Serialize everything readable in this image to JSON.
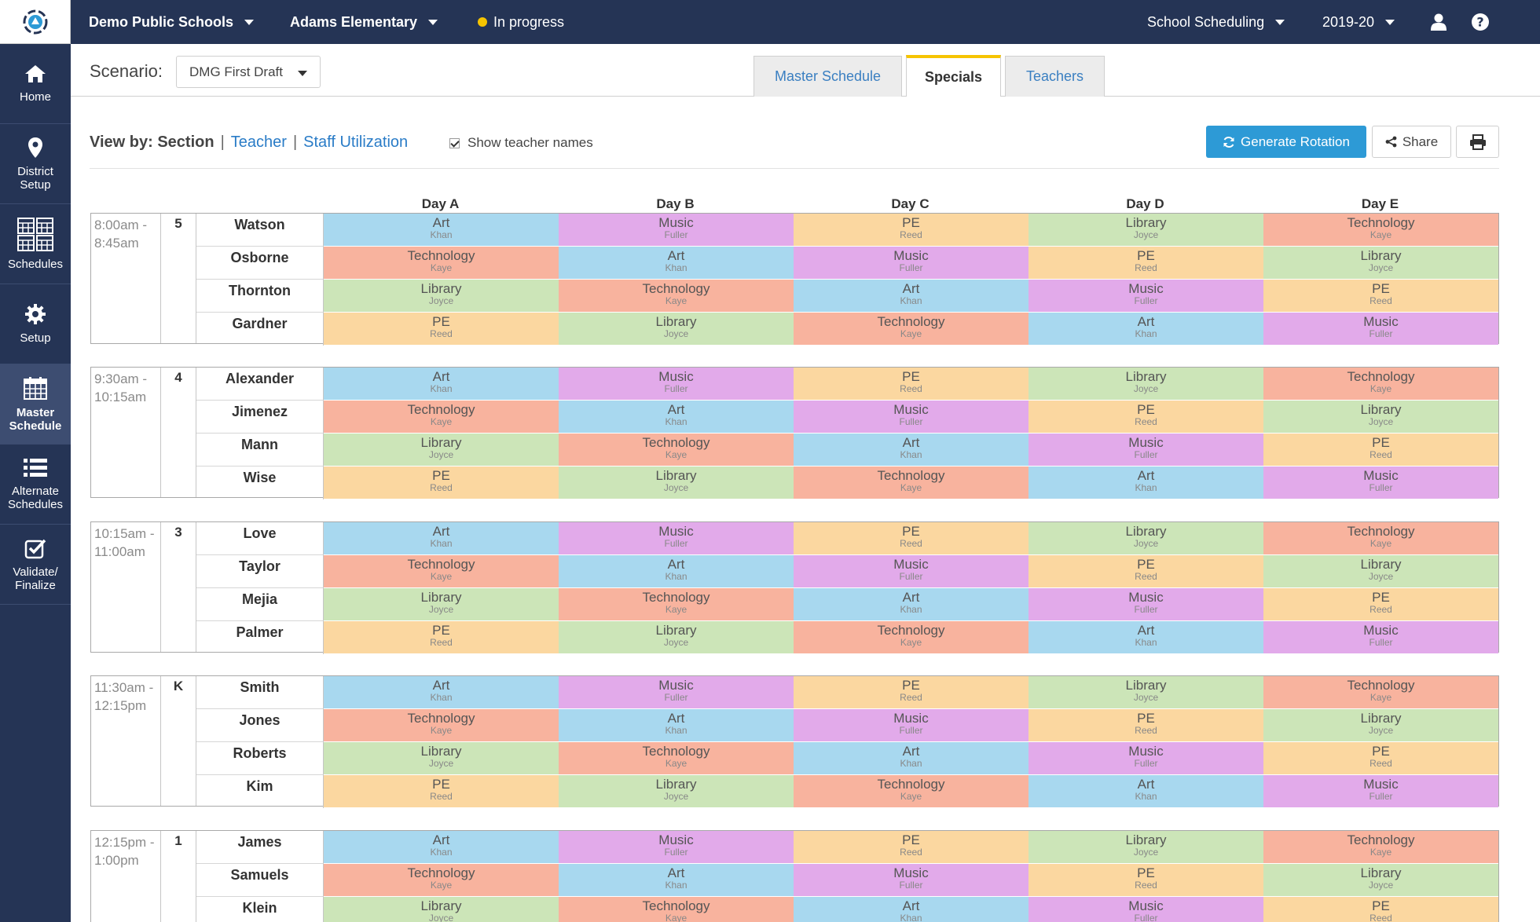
{
  "topbar": {
    "district": "Demo Public Schools",
    "school": "Adams Elementary",
    "status": "In progress",
    "app": "School Scheduling",
    "year": "2019-20"
  },
  "sidebar": {
    "items": [
      {
        "label": "Home",
        "icon": "home-icon"
      },
      {
        "label": "District\nSetup",
        "icon": "map-pin-icon"
      },
      {
        "label": "Schedules",
        "icon": "calendar-grid-icon"
      },
      {
        "label": "Setup",
        "icon": "gear-icon"
      },
      {
        "label": "Master\nSchedule",
        "icon": "calendar-icon",
        "active": true
      },
      {
        "label": "Alternate\nSchedules",
        "icon": "list-icon"
      },
      {
        "label": "Validate/\nFinalize",
        "icon": "checkbox-icon"
      }
    ]
  },
  "scenario": {
    "label": "Scenario:",
    "value": "DMG First Draft"
  },
  "tabs": [
    {
      "label": "Master Schedule",
      "active": false
    },
    {
      "label": "Specials",
      "active": true
    },
    {
      "label": "Teachers",
      "active": false
    }
  ],
  "viewby": {
    "label": "View by: Section",
    "teacher": "Teacher",
    "staff": "Staff Utilization",
    "sep": "|",
    "show_names": "Show teacher names"
  },
  "buttons": {
    "generate": "Generate Rotation",
    "share": "Share"
  },
  "days": [
    "Day A",
    "Day B",
    "Day C",
    "Day D",
    "Day E"
  ],
  "colors": {
    "Art": "#a8d8ef",
    "Music": "#e2aaea",
    "PE": "#fbd7a0",
    "Library": "#cce5b8",
    "Technology": "#f8b39e",
    "accent": "#f6c400",
    "nav": "#253455",
    "primary": "#2d9ad6"
  },
  "blocks": [
    {
      "time": "8:00am -\n8:45am",
      "grade": "5",
      "sections": [
        "Watson",
        "Osborne",
        "Thornton",
        "Gardner"
      ]
    },
    {
      "time": "9:30am -\n10:15am",
      "grade": "4",
      "sections": [
        "Alexander",
        "Jimenez",
        "Mann",
        "Wise"
      ]
    },
    {
      "time": "10:15am -\n11:00am",
      "grade": "3",
      "sections": [
        "Love",
        "Taylor",
        "Mejia",
        "Palmer"
      ]
    },
    {
      "time": "11:30am -\n12:15pm",
      "grade": "K",
      "sections": [
        "Smith",
        "Jones",
        "Roberts",
        "Kim"
      ]
    },
    {
      "time": "12:15pm -\n1:00pm",
      "grade": "1",
      "sections": [
        "James",
        "Samuels",
        "Klein"
      ]
    }
  ],
  "rotation": [
    [
      {
        "subject": "Art",
        "teacher": "Khan"
      },
      {
        "subject": "Music",
        "teacher": "Fuller"
      },
      {
        "subject": "PE",
        "teacher": "Reed"
      },
      {
        "subject": "Library",
        "teacher": "Joyce"
      },
      {
        "subject": "Technology",
        "teacher": "Kaye"
      }
    ],
    [
      {
        "subject": "Technology",
        "teacher": "Kaye"
      },
      {
        "subject": "Art",
        "teacher": "Khan"
      },
      {
        "subject": "Music",
        "teacher": "Fuller"
      },
      {
        "subject": "PE",
        "teacher": "Reed"
      },
      {
        "subject": "Library",
        "teacher": "Joyce"
      }
    ],
    [
      {
        "subject": "Library",
        "teacher": "Joyce"
      },
      {
        "subject": "Technology",
        "teacher": "Kaye"
      },
      {
        "subject": "Art",
        "teacher": "Khan"
      },
      {
        "subject": "Music",
        "teacher": "Fuller"
      },
      {
        "subject": "PE",
        "teacher": "Reed"
      }
    ],
    [
      {
        "subject": "PE",
        "teacher": "Reed"
      },
      {
        "subject": "Library",
        "teacher": "Joyce"
      },
      {
        "subject": "Technology",
        "teacher": "Kaye"
      },
      {
        "subject": "Art",
        "teacher": "Khan"
      },
      {
        "subject": "Music",
        "teacher": "Fuller"
      }
    ]
  ]
}
